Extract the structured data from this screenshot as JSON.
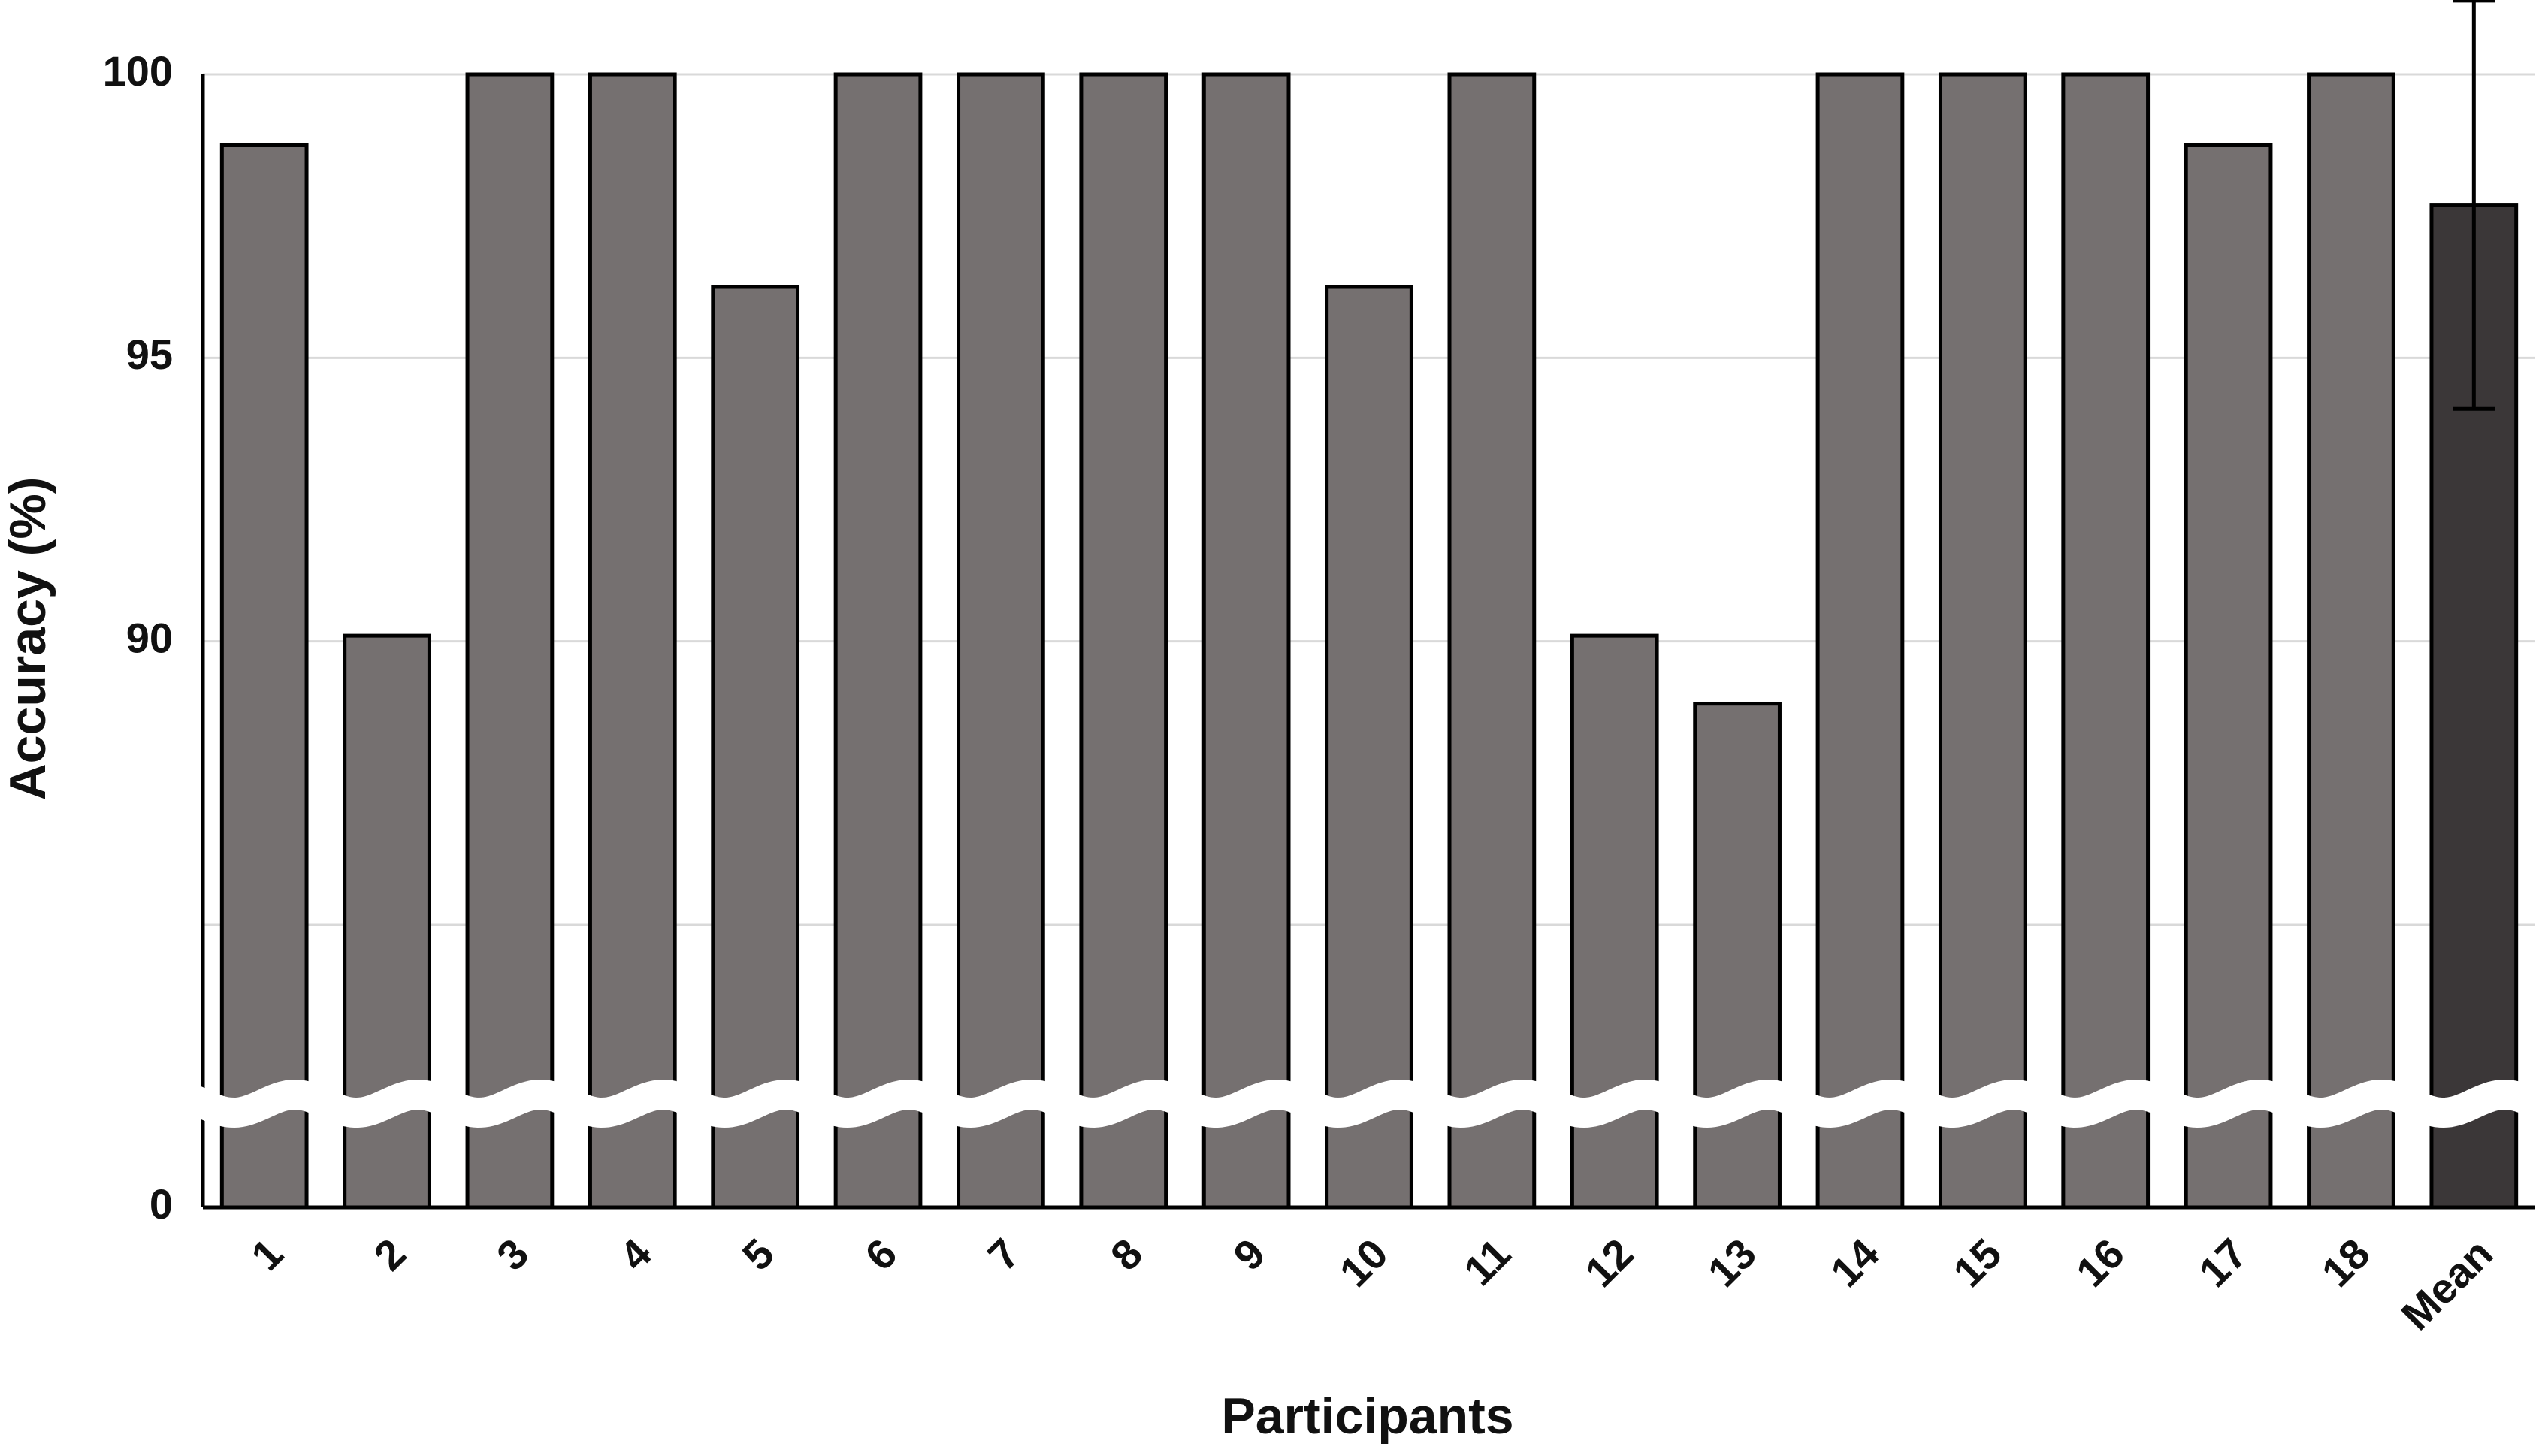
{
  "chart_data": {
    "type": "bar",
    "x_label": "Participants",
    "y_label": "Accuracy (%)",
    "categories": [
      "1",
      "2",
      "3",
      "4",
      "5",
      "6",
      "7",
      "8",
      "9",
      "10",
      "11",
      "12",
      "13",
      "14",
      "15",
      "16",
      "17",
      "18",
      "Mean"
    ],
    "values": [
      98.75,
      90.1,
      100,
      100,
      96.25,
      100,
      100,
      100,
      100,
      96.25,
      100,
      90.1,
      88.9,
      100,
      100,
      100,
      98.75,
      100,
      97.7
    ],
    "errors": [
      null,
      null,
      null,
      null,
      null,
      null,
      null,
      null,
      null,
      null,
      null,
      null,
      null,
      null,
      null,
      null,
      null,
      null,
      3.6
    ],
    "colors": [
      "#757070",
      "#757070",
      "#757070",
      "#757070",
      "#757070",
      "#757070",
      "#757070",
      "#757070",
      "#757070",
      "#757070",
      "#757070",
      "#757070",
      "#757070",
      "#757070",
      "#757070",
      "#757070",
      "#757070",
      "#757070",
      "#3b3738"
    ],
    "ylim": [
      0,
      100
    ],
    "axis_break": 85,
    "yticks": [
      0,
      90,
      95,
      100
    ],
    "grid": true
  }
}
